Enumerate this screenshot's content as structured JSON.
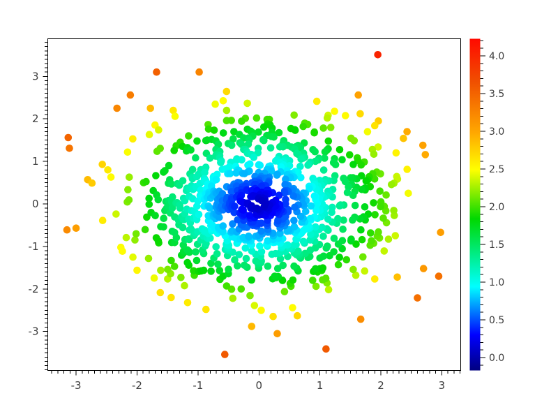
{
  "figure": {
    "background": "#ffffff",
    "frame_color": "#000000",
    "tick_label_color": "#3d3d3d"
  },
  "chart_data": {
    "type": "scatter",
    "title": "",
    "xlabel": "",
    "ylabel": "",
    "legend": "none",
    "grid": "off",
    "x_axis": {
      "min": -3.465,
      "max": 3.31,
      "major_ticks": [
        -3,
        -2,
        -1,
        0,
        1,
        2,
        3
      ],
      "tick_labels": [
        "-3",
        "-2",
        "-1",
        "0",
        "1",
        "2",
        "3"
      ],
      "minor_step": 0.1,
      "ticks_side": "bottom-outward"
    },
    "y_axis": {
      "min": -3.916,
      "max": 3.884,
      "major_ticks": [
        -3,
        -2,
        -1,
        0,
        1,
        2,
        3
      ],
      "tick_labels": [
        "-3",
        "-2",
        "-1",
        "0",
        "1",
        "2",
        "3"
      ],
      "minor_step": 0.1,
      "ticks_side": "left-outward"
    },
    "color_axis": {
      "min": -0.171,
      "max": 4.227,
      "major_ticks": [
        0,
        0.5,
        1,
        1.5,
        2,
        2.5,
        3,
        3.5,
        4
      ],
      "tick_labels": [
        "0.0",
        "0.5",
        "1.0",
        "1.5",
        "2.0",
        "2.5",
        "3.0",
        "3.5",
        "4.0"
      ],
      "minor_step": 0.1,
      "position": "right"
    },
    "color_by": "radius (distance from origin)",
    "colormap_stops": [
      [
        -0.171,
        "#000080"
      ],
      [
        0.3,
        "#0000FF"
      ],
      [
        0.94,
        "#00FFFF"
      ],
      [
        1.84,
        "#00D800"
      ],
      [
        2.49,
        "#FFFF00"
      ],
      [
        2.98,
        "#FFA800"
      ],
      [
        3.65,
        "#F05000"
      ],
      [
        4.227,
        "#FF0A00"
      ]
    ],
    "marker": {
      "shape": "circle",
      "radius_px": 5.3
    },
    "cloud": {
      "distribution": "gaussian",
      "n": 950,
      "center": [
        0,
        0
      ],
      "sigma_x": 1.0,
      "sigma_y": 1.0,
      "clamp_radius": 2.72,
      "seed": 42
    },
    "outliers": [
      [
        1.95,
        3.51
      ],
      [
        -1.68,
        3.1
      ],
      [
        -0.98,
        3.1
      ],
      [
        -2.11,
        2.56
      ],
      [
        -2.33,
        2.25
      ],
      [
        -1.78,
        2.25
      ],
      [
        1.63,
        2.56
      ],
      [
        1.96,
        1.95
      ],
      [
        1.9,
        1.84
      ],
      [
        2.43,
        1.7
      ],
      [
        2.37,
        1.54
      ],
      [
        2.69,
        1.38
      ],
      [
        2.73,
        1.16
      ],
      [
        2.25,
        1.2
      ],
      [
        -3.13,
        1.56
      ],
      [
        -3.11,
        1.31
      ],
      [
        -2.07,
        1.53
      ],
      [
        -2.57,
        0.93
      ],
      [
        -2.48,
        0.8
      ],
      [
        -2.81,
        0.57
      ],
      [
        -2.74,
        0.49
      ],
      [
        -3.15,
        -0.61
      ],
      [
        -3.0,
        -0.57
      ],
      [
        -2.0,
        -1.56
      ],
      [
        -1.44,
        -2.2
      ],
      [
        -1.17,
        -2.32
      ],
      [
        -0.87,
        -2.48
      ],
      [
        -0.12,
        -2.88
      ],
      [
        0.63,
        -2.63
      ],
      [
        0.3,
        -3.05
      ],
      [
        -0.56,
        -3.54
      ],
      [
        1.1,
        -3.41
      ],
      [
        1.67,
        -2.71
      ],
      [
        2.98,
        -0.67
      ],
      [
        2.7,
        -1.52
      ],
      [
        2.95,
        -1.7
      ],
      [
        2.27,
        -1.72
      ],
      [
        2.6,
        -2.21
      ]
    ]
  }
}
